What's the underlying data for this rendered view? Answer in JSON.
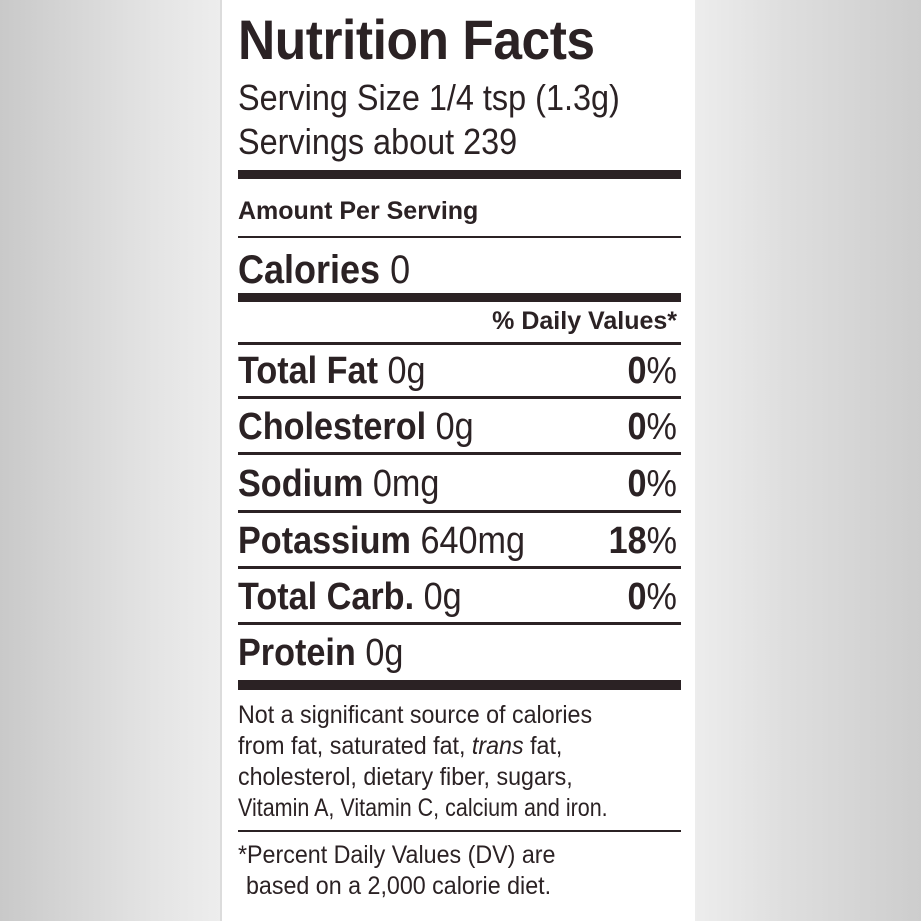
{
  "label": {
    "title": "Nutrition Facts",
    "serving_size": "Serving Size 1/4 tsp (1.3g)",
    "servings": "Servings about 239",
    "amount_per_serving": "Amount Per Serving",
    "calories_label": "Calories",
    "calories_value": "0",
    "daily_values_header": "% Daily Values*",
    "nutrients": [
      {
        "name": "Total Fat",
        "amount": "0g",
        "dv": "0",
        "dv_sym": "%"
      },
      {
        "name": "Cholesterol",
        "amount": "0g",
        "dv": "0",
        "dv_sym": "%"
      },
      {
        "name": "Sodium",
        "amount": "0mg",
        "dv": "0",
        "dv_sym": "%"
      },
      {
        "name": "Potassium",
        "amount": "640mg",
        "dv": "18",
        "dv_sym": "%"
      },
      {
        "name": "Total Carb.",
        "amount": "0g",
        "dv": "0",
        "dv_sym": "%"
      },
      {
        "name": "Protein",
        "amount": "0g"
      }
    ],
    "footnote_lines": [
      "Not a significant source of calories",
      "from fat, saturated fat, ",
      "trans",
      " fat,",
      "cholesterol, dietary fiber, sugars,",
      "Vitamin A, Vitamin C, calcium and iron."
    ],
    "dv_note_lines": [
      "*Percent Daily Values (DV) are",
      "based on a 2,000 calorie diet."
    ]
  }
}
